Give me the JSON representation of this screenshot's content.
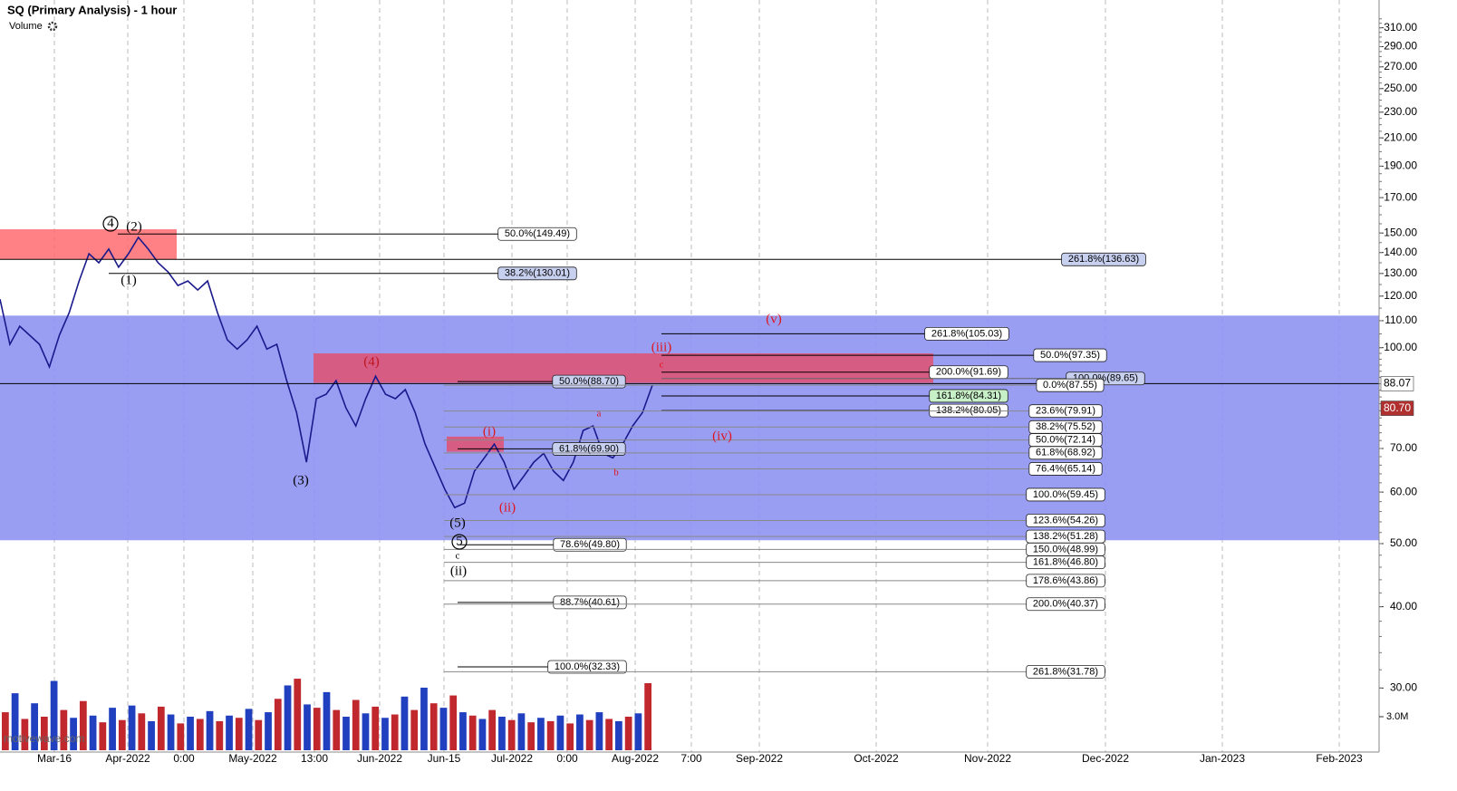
{
  "chart_data": {
    "type": "line",
    "title": "SQ (Primary Analysis) - 1 hour",
    "indicator_label": "Volume",
    "watermark": "motivewave.com",
    "log_scale": true,
    "ylim": [
      24,
      342
    ],
    "yticks": [
      {
        "value": 310,
        "label": "310.00"
      },
      {
        "value": 290,
        "label": "290.00"
      },
      {
        "value": 270,
        "label": "270.00"
      },
      {
        "value": 250,
        "label": "250.00"
      },
      {
        "value": 230,
        "label": "230.00"
      },
      {
        "value": 210,
        "label": "210.00"
      },
      {
        "value": 190,
        "label": "190.00"
      },
      {
        "value": 170,
        "label": "170.00"
      },
      {
        "value": 150,
        "label": "150.00"
      },
      {
        "value": 140,
        "label": "140.00"
      },
      {
        "value": 130,
        "label": "130.00"
      },
      {
        "value": 120,
        "label": "120.00"
      },
      {
        "value": 110,
        "label": "110.00"
      },
      {
        "value": 100,
        "label": "100.00"
      },
      {
        "value": 70,
        "label": "70.00"
      },
      {
        "value": 60,
        "label": "60.00"
      },
      {
        "value": 50,
        "label": "50.00"
      },
      {
        "value": 40,
        "label": "40.00"
      },
      {
        "value": 30,
        "label": "30.00"
      }
    ],
    "x_labels": [
      "Mar-16",
      "Apr-2022",
      "0:00",
      "May-2022",
      "13:00",
      "Jun-2022",
      "Jun-15",
      "Jul-2022",
      "0:00",
      "Aug-2022",
      "7:00",
      "Sep-2022",
      "Oct-2022",
      "Nov-2022",
      "Dec-2022",
      "Jan-2023",
      "Feb-2023"
    ],
    "series": [
      {
        "name": "SQ",
        "color": "#1a1a8c",
        "values": [
          118.7,
          101.2,
          107.9,
          104.5,
          101.2,
          93.4,
          104.5,
          113.2,
          126.6,
          139.4,
          135.0,
          141.7,
          132.9,
          139.4,
          147.7,
          141.7,
          135.0,
          130.7,
          124.6,
          126.6,
          122.6,
          126.6,
          113.2,
          102.8,
          99.5,
          102.8,
          107.9,
          99.5,
          101.2,
          89.0,
          79.5,
          66.7,
          83.5,
          84.8,
          89.0,
          80.8,
          75.8,
          83.5,
          90.4,
          84.8,
          83.5,
          86.2,
          79.5,
          71.1,
          65.6,
          60.6,
          56.8,
          57.7,
          64.6,
          67.7,
          71.1,
          66.7,
          60.6,
          63.5,
          66.7,
          68.8,
          64.6,
          62.5,
          66.7,
          74.6,
          75.8,
          68.8,
          67.7,
          71.1,
          75.8,
          79.5,
          87.6
        ]
      }
    ],
    "volume": {
      "colors": [
        "#c0282d",
        "#2040c0"
      ],
      "label": "3.0M",
      "label_value": 3.0,
      "values": [
        3.4,
        5.1,
        2.8,
        4.2,
        3.0,
        6.2,
        3.6,
        2.9,
        4.4,
        3.1,
        2.5,
        3.8,
        2.7,
        4.0,
        3.3,
        2.6,
        3.9,
        3.2,
        2.4,
        3.0,
        2.8,
        3.5,
        2.6,
        3.1,
        2.9,
        3.7,
        2.7,
        3.4,
        4.6,
        5.8,
        6.4,
        4.1,
        3.8,
        5.2,
        3.6,
        3.0,
        4.5,
        3.3,
        3.9,
        2.9,
        3.2,
        4.8,
        3.6,
        5.6,
        4.2,
        3.8,
        4.9,
        3.4,
        3.1,
        2.8,
        3.6,
        3.0,
        2.7,
        3.3,
        2.5,
        2.9,
        2.6,
        3.1,
        2.4,
        3.2,
        2.7,
        3.4,
        2.8,
        2.6,
        3.0,
        3.3,
        6.0
      ]
    },
    "price_markers": [
      {
        "value": 88.07,
        "label": "88.07",
        "color": "#ffffff",
        "text_color": "#000000"
      },
      {
        "value": 80.7,
        "label": "80.70",
        "color": "#b03030",
        "text_color": "#ffffff"
      }
    ],
    "zones": [
      {
        "from": 136.6,
        "to": 152,
        "color": "#ff6b70"
      },
      {
        "from": 50.6,
        "to": 112,
        "color": "#8f93f2"
      },
      {
        "from": 88.3,
        "to": 98,
        "color": "#e05070"
      },
      {
        "from": 69.2,
        "to": 73,
        "color": "#e05070"
      }
    ],
    "fib_levels": [
      {
        "label": "50.0%(149.49)",
        "value": 149.49,
        "fill": "#ffffff"
      },
      {
        "label": "38.2%(130.01)",
        "value": 130.01,
        "fill": "#c8d0f0"
      },
      {
        "label": "261.8%(136.63)",
        "value": 136.63,
        "fill": "#c8d0f0"
      },
      {
        "label": "50.0%(88.70)",
        "value": 88.7,
        "fill": "#c8d0f0"
      },
      {
        "label": "61.8%(69.90)",
        "value": 69.9,
        "fill": "#c8d0f0"
      },
      {
        "label": "78.6%(49.80)",
        "value": 49.8,
        "fill": "#ffffff"
      },
      {
        "label": "88.7%(40.61)",
        "value": 40.61,
        "fill": "#ffffff"
      },
      {
        "label": "100.0%(32.33)",
        "value": 32.33,
        "fill": "#ffffff"
      },
      {
        "label": "261.8%(105.03)",
        "value": 105.03,
        "fill": "#ffffff"
      },
      {
        "label": "50.0%(97.35)",
        "value": 97.35,
        "fill": "#ffffff"
      },
      {
        "label": "200.0%(91.69)",
        "value": 91.69,
        "fill": "#ffffff"
      },
      {
        "label": "100.0%(89.65)",
        "value": 89.65,
        "fill": "#c8d0f0"
      },
      {
        "label": "0.0%(87.55)",
        "value": 87.55,
        "fill": "#ffffff"
      },
      {
        "label": "161.8%(84.31)",
        "value": 84.31,
        "fill": "#c8f0c8"
      },
      {
        "label": "138.2%(80.05)",
        "value": 80.05,
        "fill": "#ffffff"
      },
      {
        "label": "23.6%(79.91)",
        "value": 79.91,
        "fill": "#ffffff"
      },
      {
        "label": "38.2%(75.52)",
        "value": 75.52,
        "fill": "#ffffff"
      },
      {
        "label": "50.0%(72.14)",
        "value": 72.14,
        "fill": "#ffffff"
      },
      {
        "label": "61.8%(68.92)",
        "value": 68.92,
        "fill": "#ffffff"
      },
      {
        "label": "76.4%(65.14)",
        "value": 65.14,
        "fill": "#ffffff"
      },
      {
        "label": "100.0%(59.45)",
        "value": 59.45,
        "fill": "#ffffff"
      },
      {
        "label": "123.6%(54.26)",
        "value": 54.26,
        "fill": "#ffffff"
      },
      {
        "label": "138.2%(51.28)",
        "value": 51.28,
        "fill": "#ffffff"
      },
      {
        "label": "150.0%(48.99)",
        "value": 48.99,
        "fill": "#ffffff"
      },
      {
        "label": "161.8%(46.80)",
        "value": 46.8,
        "fill": "#ffffff"
      },
      {
        "label": "178.6%(43.86)",
        "value": 43.86,
        "fill": "#ffffff"
      },
      {
        "label": "200.0%(40.37)",
        "value": 40.37,
        "fill": "#ffffff"
      },
      {
        "label": "261.8%(31.78)",
        "value": 31.78,
        "fill": "#ffffff"
      }
    ],
    "wave_labels": [
      {
        "text": "4",
        "color": "#000000",
        "circled": true
      },
      {
        "text": "(2)",
        "color": "#000000",
        "circled": false
      },
      {
        "text": "(1)",
        "color": "#000000",
        "circled": false
      },
      {
        "text": "(3)",
        "color": "#000000",
        "circled": false
      },
      {
        "text": "(4)",
        "color": "#c0141c",
        "circled": false
      },
      {
        "text": "(5)",
        "color": "#000000",
        "circled": false
      },
      {
        "text": "5",
        "color": "#000000",
        "circled": true
      },
      {
        "text": "c",
        "color": "#000000",
        "circled": false
      },
      {
        "text": "(ii)",
        "color": "#000000",
        "circled": false
      },
      {
        "text": "(i)",
        "color": "#e0141c",
        "circled": false
      },
      {
        "text": "(ii)",
        "color": "#e0141c",
        "circled": false
      },
      {
        "text": "a",
        "color": "#e0141c",
        "circled": false
      },
      {
        "text": "b",
        "color": "#e0141c",
        "circled": false
      },
      {
        "text": "c",
        "color": "#e0141c",
        "circled": false
      },
      {
        "text": "(iii)",
        "color": "#e0141c",
        "circled": false
      },
      {
        "text": "(iv)",
        "color": "#e0141c",
        "circled": false
      },
      {
        "text": "(v)",
        "color": "#e0141c",
        "circled": false
      }
    ]
  }
}
